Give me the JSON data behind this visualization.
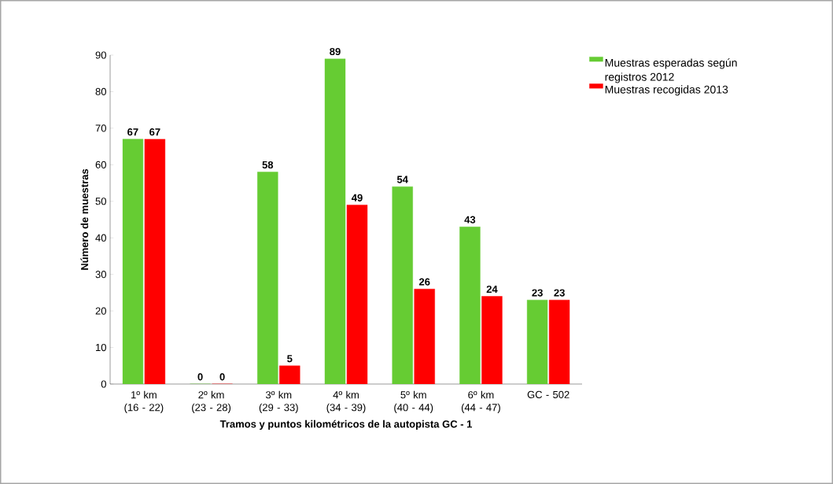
{
  "chart_data": {
    "type": "bar",
    "xlabel": "Tramos y puntos kilométricos de la autopista GC - 1",
    "ylabel": "Número de muestras",
    "categories": [
      "1º km (16 - 22)",
      "2º km (23 - 28)",
      "3º km (29 - 33)",
      "4º km (34 - 39)",
      "5º km (40 - 44)",
      "6º km (44 - 47)",
      "GC - 502"
    ],
    "series": [
      {
        "name": "Muestras esperadas según registros 2012",
        "color": "#66cc33",
        "values": [
          67,
          0,
          58,
          89,
          54,
          43,
          23
        ]
      },
      {
        "name": "Muestras recogidas 2013",
        "color": "#ff0000",
        "values": [
          67,
          0,
          5,
          49,
          26,
          24,
          23
        ]
      }
    ],
    "ylim": [
      0,
      90
    ],
    "yticks": [
      0,
      10,
      20,
      30,
      40,
      50,
      60,
      70,
      80,
      90
    ],
    "data_labels": true,
    "legend": "top right",
    "grid": false
  }
}
